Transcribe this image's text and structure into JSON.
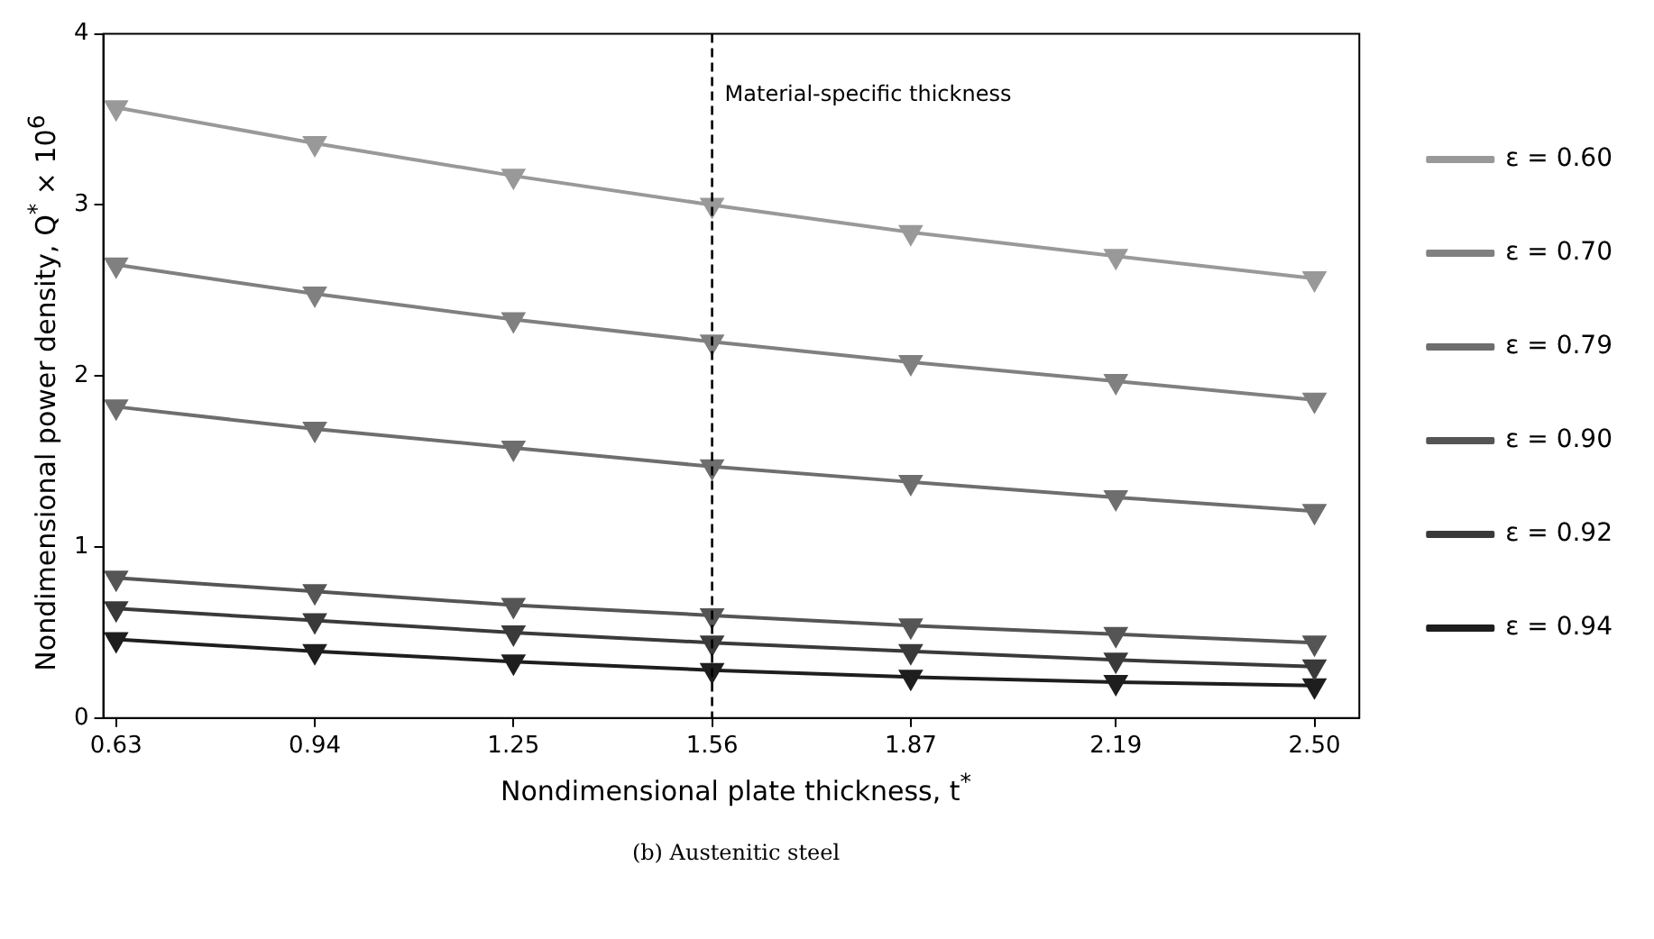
{
  "chart_data": {
    "type": "line",
    "xlabel": "Nondimensional plate thickness, t$^{*}$",
    "ylabel": "Nondimensional power density, Q$^{*}$ × 10$^{6}$",
    "x": [
      0.63,
      0.94,
      1.25,
      1.56,
      1.87,
      2.19,
      2.5
    ],
    "xlim": [
      0.61,
      2.57
    ],
    "xticks": [
      0.63,
      0.94,
      1.25,
      1.56,
      1.87,
      2.19,
      {
        "value": 2.5,
        "label": "2.50"
      }
    ],
    "ylim": [
      0,
      4
    ],
    "yticks": [
      0,
      1,
      2,
      3,
      4
    ],
    "grid": false,
    "legend": "right",
    "marker": "triangle",
    "line_style": "solid",
    "series": [
      {
        "name": "ε = 0.60",
        "color": "#999999",
        "values": [
          3.57,
          3.36,
          3.17,
          3.0,
          2.84,
          2.7,
          2.57
        ]
      },
      {
        "name": "ε = 0.70",
        "color": "#808080",
        "values": [
          2.65,
          2.48,
          2.33,
          2.2,
          2.08,
          1.97,
          1.86
        ]
      },
      {
        "name": "ε = 0.79",
        "color": "#6e6e6e",
        "values": [
          1.82,
          1.69,
          1.58,
          1.47,
          1.38,
          1.29,
          1.21
        ]
      },
      {
        "name": "ε = 0.90",
        "color": "#555555",
        "values": [
          0.82,
          0.74,
          0.66,
          0.6,
          0.54,
          0.49,
          0.44
        ]
      },
      {
        "name": "ε = 0.92",
        "color": "#3a3a3a",
        "values": [
          0.64,
          0.57,
          0.5,
          0.44,
          0.39,
          0.34,
          0.3
        ]
      },
      {
        "name": "ε = 0.94",
        "color": "#1e1e1e",
        "values": [
          0.46,
          0.39,
          0.33,
          0.28,
          0.24,
          0.21,
          0.19
        ]
      }
    ],
    "ref_lines": [
      {
        "axis": "x",
        "value": 1.56,
        "label": "Material-specific thickness",
        "color": "#000000",
        "line_style": "dashed"
      }
    ],
    "annotations": [
      "(b) Austenitic steel"
    ]
  }
}
